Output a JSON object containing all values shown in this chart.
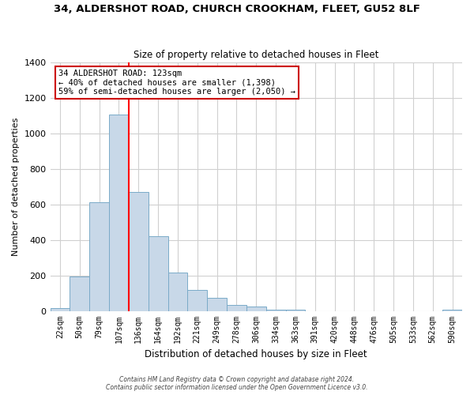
{
  "title": "34, ALDERSHOT ROAD, CHURCH CROOKHAM, FLEET, GU52 8LF",
  "subtitle": "Size of property relative to detached houses in Fleet",
  "xlabel": "Distribution of detached houses by size in Fleet",
  "ylabel": "Number of detached properties",
  "bin_labels": [
    "22sqm",
    "50sqm",
    "79sqm",
    "107sqm",
    "136sqm",
    "164sqm",
    "192sqm",
    "221sqm",
    "249sqm",
    "278sqm",
    "306sqm",
    "334sqm",
    "363sqm",
    "391sqm",
    "420sqm",
    "448sqm",
    "476sqm",
    "505sqm",
    "533sqm",
    "562sqm",
    "590sqm"
  ],
  "bar_heights": [
    15,
    193,
    610,
    1105,
    670,
    420,
    218,
    120,
    75,
    35,
    25,
    5,
    5,
    0,
    0,
    0,
    0,
    0,
    0,
    0,
    5
  ],
  "bar_color": "#c8d8e8",
  "bar_edge_color": "#7aaac8",
  "red_line_label": "34 ALDERSHOT ROAD: 123sqm",
  "annotation_line2": "← 40% of detached houses are smaller (1,398)",
  "annotation_line3": "59% of semi-detached houses are larger (2,050) →",
  "annotation_box_color": "#ffffff",
  "annotation_border_color": "#cc0000",
  "ylim": [
    0,
    1400
  ],
  "yticks": [
    0,
    200,
    400,
    600,
    800,
    1000,
    1200,
    1400
  ],
  "footer_line1": "Contains HM Land Registry data © Crown copyright and database right 2024.",
  "footer_line2": "Contains public sector information licensed under the Open Government Licence v3.0.",
  "background_color": "#ffffff",
  "grid_color": "#d0d0d0"
}
